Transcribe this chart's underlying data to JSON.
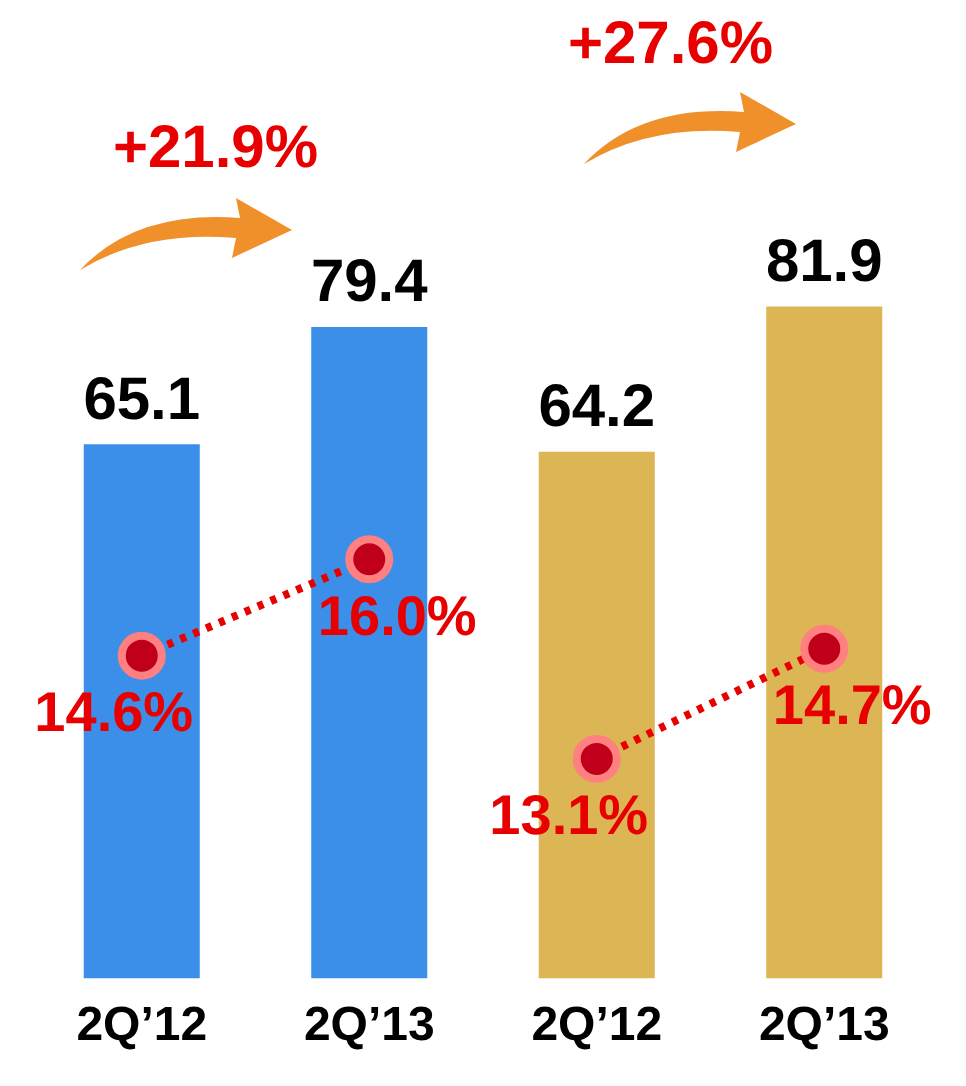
{
  "chart_data": {
    "type": "bar",
    "categories": [
      "2Q’12",
      "2Q’13",
      "2Q’12",
      "2Q’13"
    ],
    "series": [
      {
        "colors": [
          "#3b8fe8",
          "#3b8fe8",
          "#dcb555",
          "#dcb555"
        ],
        "values": [
          65.1,
          79.4,
          64.2,
          81.9
        ],
        "value_labels": [
          "65.1",
          "79.4",
          "64.2",
          "81.9"
        ]
      },
      {
        "type": "line",
        "axis": "y2",
        "color": "#e80000",
        "values": [
          14.6,
          16.0,
          null,
          null
        ],
        "value_labels": [
          "14.6%",
          "16.0%",
          null,
          null
        ]
      },
      {
        "type": "line",
        "axis": "y2",
        "color": "#e80000",
        "values": [
          null,
          null,
          13.1,
          14.7
        ],
        "value_labels": [
          null,
          null,
          "13.1%",
          "14.7%"
        ]
      }
    ],
    "marker": "circle",
    "line_style": "dotted",
    "grid": false,
    "legend": false,
    "tick_labels": "x",
    "annotations": [
      "+21.9%",
      "+27.6%"
    ]
  }
}
